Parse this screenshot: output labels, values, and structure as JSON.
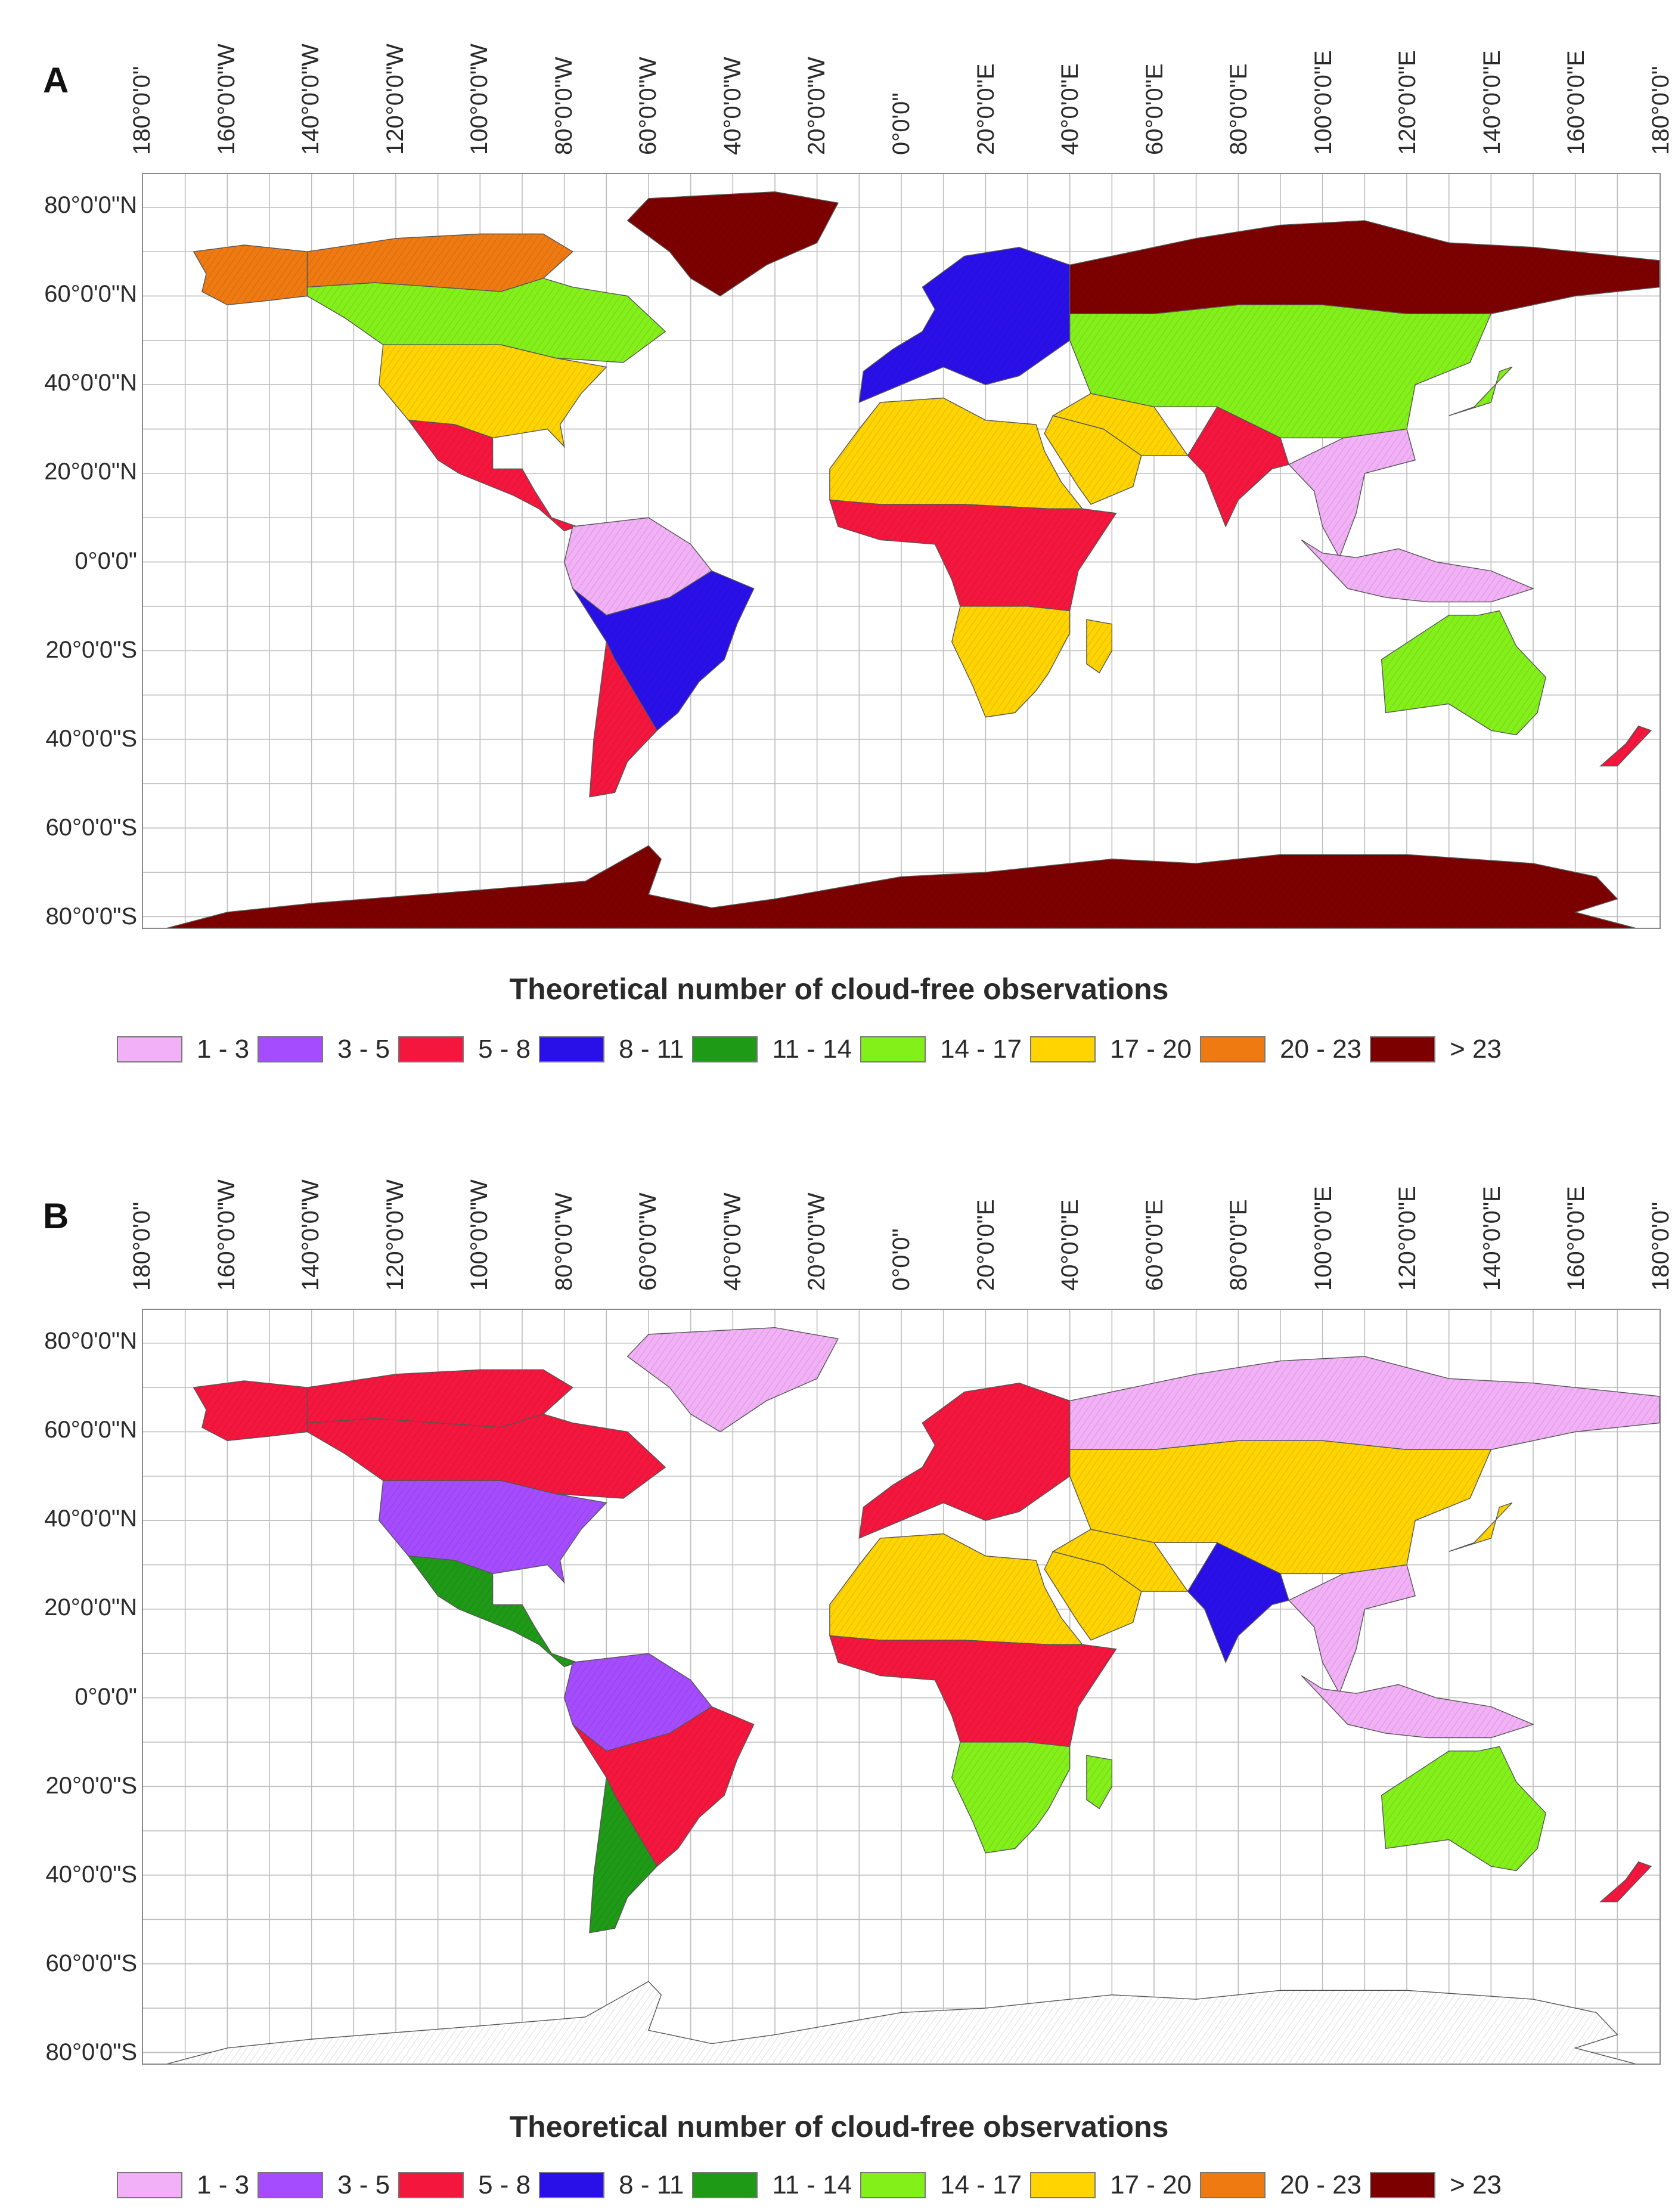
{
  "legend": {
    "title": "Theoretical number of cloud-free observations",
    "classes": [
      {
        "label": "1 - 3",
        "color": "#f2b0f6"
      },
      {
        "label": "3 - 5",
        "color": "#a64cff"
      },
      {
        "label": "5 - 8",
        "color": "#f5163e"
      },
      {
        "label": "8 - 11",
        "color": "#2a10e8"
      },
      {
        "label": "11 - 14",
        "color": "#1f9a17"
      },
      {
        "label": "14 - 17",
        "color": "#84f01a"
      },
      {
        "label": "17 - 20",
        "color": "#ffd400"
      },
      {
        "label": "20 - 23",
        "color": "#ef7a12"
      },
      {
        "label": "> 23",
        "color": "#7d0000"
      }
    ]
  },
  "longitude_labels": [
    "180°0'0\"",
    "160°0'0\"W",
    "140°0'0\"W",
    "120°0'0\"W",
    "100°0'0\"W",
    "80°0'0\"W",
    "60°0'0\"W",
    "40°0'0\"W",
    "20°0'0\"W",
    "0°0'0\"",
    "20°0'0\"E",
    "40°0'0\"E",
    "60°0'0\"E",
    "80°0'0\"E",
    "100°0'0\"E",
    "120°0'0\"E",
    "140°0'0\"E",
    "160°0'0\"E",
    "180°0'0\""
  ],
  "latitude_labels": [
    "80°0'0\"N",
    "60°0'0\"N",
    "40°0'0\"N",
    "20°0'0\"N",
    "0°0'0\"",
    "20°0'0\"S",
    "40°0'0\"S",
    "60°0'0\"S",
    "80°0'0\"S"
  ],
  "panels": [
    {
      "id": "A",
      "letter": "A",
      "regions": {
        "greenland": "> 23",
        "antarctica": "> 23",
        "arctic_canada": "20 - 23",
        "canada_south": "14 - 17",
        "usa": "17 - 20",
        "central_america": "5 - 8",
        "amazon": "1 - 3",
        "brazil": "8 - 11",
        "sahara": "17 - 20",
        "central_africa": "5 - 8",
        "southern_africa": "17 - 20",
        "europe": "8 - 11",
        "siberia": "> 23",
        "central_asia": "14 - 17",
        "india": "5 - 8",
        "se_asia": "1 - 3",
        "australia": "14 - 17"
      }
    },
    {
      "id": "B",
      "letter": "B",
      "regions": {
        "greenland": "1 - 3",
        "antarctica": "1 - 3",
        "arctic_canada": "5 - 8",
        "canada_south": "5 - 8",
        "usa": "3 - 5",
        "central_america": "11 - 14",
        "amazon": "3 - 5",
        "brazil": "5 - 8",
        "sahara": "17 - 20",
        "central_africa": "5 - 8",
        "southern_africa": "14 - 17",
        "europe": "5 - 8",
        "siberia": "1 - 3",
        "central_asia": "17 - 20",
        "india": "8 - 11",
        "se_asia": "1 - 3",
        "australia": "14 - 17"
      }
    }
  ]
}
